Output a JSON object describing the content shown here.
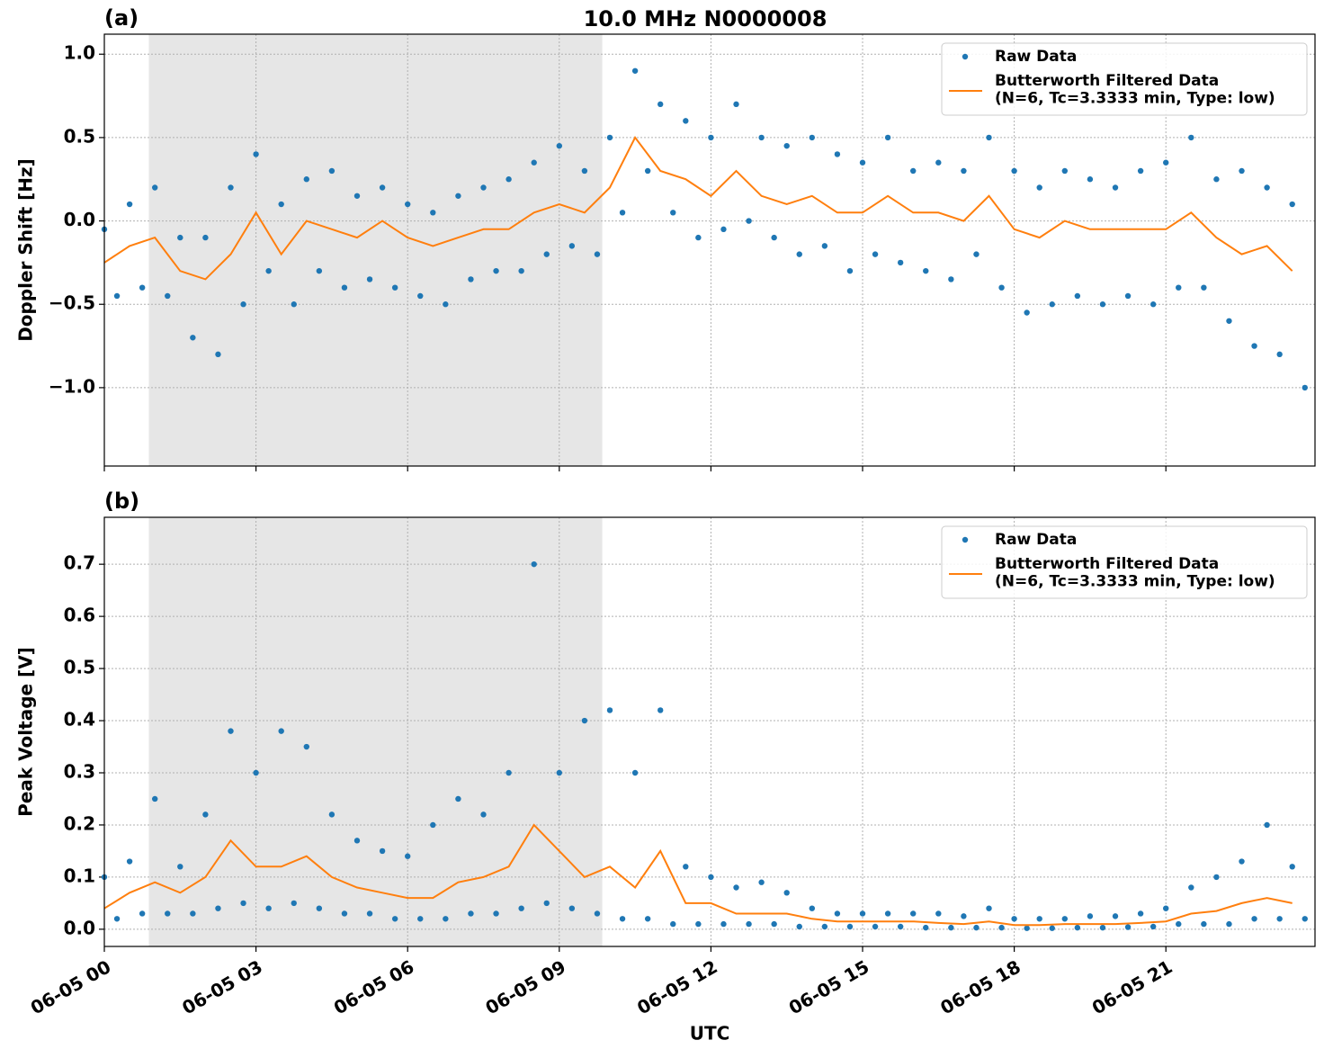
{
  "chart_data": [
    {
      "type": "scatter-line",
      "panel_label": "(a)",
      "title": "10.0 MHz N0000008",
      "ylabel": "Doppler Shift [Hz]",
      "xlim": [
        0,
        23.95
      ],
      "xticks": [
        0,
        3,
        6,
        9,
        12,
        15,
        18,
        21
      ],
      "show_xtick_labels": false,
      "ylim": [
        -1.47,
        1.12
      ],
      "yticks": [
        {
          "value": -1,
          "label": "−1.0"
        },
        {
          "value": -0.5,
          "label": "−0.5"
        },
        {
          "value": 0,
          "label": "0.0"
        },
        0.5,
        {
          "value": 1,
          "label": "1.0"
        }
      ],
      "grid": true,
      "legend": "upper right",
      "shade": {
        "x": [
          0.88,
          9.85
        ],
        "color": "#e6e6e6"
      },
      "series": [
        {
          "name": "Raw Data",
          "kind": "points",
          "color": "#1f77b4",
          "x": [
            0,
            0.25,
            0.5,
            0.75,
            1,
            1.25,
            1.5,
            1.75,
            2,
            2.25,
            2.5,
            2.75,
            3,
            3.25,
            3.5,
            3.75,
            4,
            4.25,
            4.5,
            4.75,
            5,
            5.25,
            5.5,
            5.75,
            6,
            6.25,
            6.5,
            6.75,
            7,
            7.25,
            7.5,
            7.75,
            8,
            8.25,
            8.5,
            8.75,
            9,
            9.25,
            9.5,
            9.75,
            10,
            10.25,
            10.5,
            10.75,
            11,
            11.25,
            11.5,
            11.75,
            12,
            12.25,
            12.5,
            12.75,
            13,
            13.25,
            13.5,
            13.75,
            14,
            14.25,
            14.5,
            14.75,
            15,
            15.25,
            15.5,
            15.75,
            16,
            16.25,
            16.5,
            16.75,
            17,
            17.25,
            17.5,
            17.75,
            18,
            18.25,
            18.5,
            18.75,
            19,
            19.25,
            19.5,
            19.75,
            20,
            20.25,
            20.5,
            20.75,
            21,
            21.25,
            21.5,
            21.75,
            22,
            22.25,
            22.5,
            22.75,
            23,
            23.25,
            23.5,
            23.75
          ],
          "values": [
            -0.05,
            -0.45,
            0.1,
            -0.4,
            0.2,
            -0.45,
            -0.1,
            -0.7,
            -0.1,
            -0.8,
            0.2,
            -0.5,
            0.4,
            -0.3,
            0.1,
            -0.5,
            0.25,
            -0.3,
            0.3,
            -0.4,
            0.15,
            -0.35,
            0.2,
            -0.4,
            0.1,
            -0.45,
            0.05,
            -0.5,
            0.15,
            -0.35,
            0.2,
            -0.3,
            0.25,
            -0.3,
            0.35,
            -0.2,
            0.45,
            -0.15,
            0.3,
            -0.2,
            0.5,
            0.05,
            0.9,
            0.3,
            0.7,
            0.05,
            0.6,
            -0.1,
            0.5,
            -0.05,
            0.7,
            0.0,
            0.5,
            -0.1,
            0.45,
            -0.2,
            0.5,
            -0.15,
            0.4,
            -0.3,
            0.35,
            -0.2,
            0.5,
            -0.25,
            0.3,
            -0.3,
            0.35,
            -0.35,
            0.3,
            -0.2,
            0.5,
            -0.4,
            0.3,
            -0.55,
            0.2,
            -0.5,
            0.3,
            -0.45,
            0.25,
            -0.5,
            0.2,
            -0.45,
            0.3,
            -0.5,
            0.35,
            -0.4,
            0.5,
            -0.4,
            0.25,
            -0.6,
            0.3,
            -0.75,
            0.2,
            -0.8,
            0.1,
            -1.0
          ]
        },
        {
          "name": "Butterworth Filtered Data\n(N=6, Tc=3.3333 min, Type: low)",
          "kind": "line",
          "color": "#ff7f0e",
          "x": [
            0,
            0.5,
            1,
            1.5,
            2,
            2.5,
            3,
            3.5,
            4,
            4.5,
            5,
            5.5,
            6,
            6.5,
            7,
            7.5,
            8,
            8.5,
            9,
            9.5,
            10,
            10.5,
            11,
            11.5,
            12,
            12.5,
            13,
            13.5,
            14,
            14.5,
            15,
            15.5,
            16,
            16.5,
            17,
            17.5,
            18,
            18.5,
            19,
            19.5,
            20,
            20.5,
            21,
            21.5,
            22,
            22.5,
            23,
            23.5
          ],
          "values": [
            -0.25,
            -0.15,
            -0.1,
            -0.3,
            -0.35,
            -0.2,
            0.05,
            -0.2,
            0.0,
            -0.05,
            -0.1,
            0.0,
            -0.1,
            -0.15,
            -0.1,
            -0.05,
            -0.05,
            0.05,
            0.1,
            0.05,
            0.2,
            0.5,
            0.3,
            0.25,
            0.15,
            0.3,
            0.15,
            0.1,
            0.15,
            0.05,
            0.05,
            0.15,
            0.05,
            0.05,
            0.0,
            0.15,
            -0.05,
            -0.1,
            0.0,
            -0.05,
            -0.05,
            -0.05,
            -0.05,
            0.05,
            -0.1,
            -0.2,
            -0.15,
            -0.3
          ]
        }
      ]
    },
    {
      "type": "scatter-line",
      "panel_label": "(b)",
      "xlabel": "UTC",
      "ylabel": "Peak Voltage [V]",
      "xlim": [
        0,
        23.95
      ],
      "xticks": [
        {
          "value": 0,
          "label": "06-05 00"
        },
        {
          "value": 3,
          "label": "06-05 03"
        },
        {
          "value": 6,
          "label": "06-05 06"
        },
        {
          "value": 9,
          "label": "06-05 09"
        },
        {
          "value": 12,
          "label": "06-05 12"
        },
        {
          "value": 15,
          "label": "06-05 15"
        },
        {
          "value": 18,
          "label": "06-05 18"
        },
        {
          "value": 21,
          "label": "06-05 21"
        }
      ],
      "show_xtick_labels": true,
      "ylim": [
        -0.033,
        0.79
      ],
      "yticks": [
        {
          "value": 0,
          "label": "0.0"
        },
        0.1,
        0.2,
        0.3,
        0.4,
        0.5,
        0.6,
        0.7
      ],
      "grid": true,
      "legend": "upper right",
      "shade": {
        "x": [
          0.88,
          9.85
        ],
        "color": "#e6e6e6"
      },
      "series": [
        {
          "name": "Raw Data",
          "kind": "points",
          "color": "#1f77b4",
          "x": [
            0,
            0.25,
            0.5,
            0.75,
            1,
            1.25,
            1.5,
            1.75,
            2,
            2.25,
            2.5,
            2.75,
            3,
            3.25,
            3.5,
            3.75,
            4,
            4.25,
            4.5,
            4.75,
            5,
            5.25,
            5.5,
            5.75,
            6,
            6.25,
            6.5,
            6.75,
            7,
            7.25,
            7.5,
            7.75,
            8,
            8.25,
            8.5,
            8.75,
            9,
            9.25,
            9.5,
            9.75,
            10,
            10.25,
            10.5,
            10.75,
            11,
            11.25,
            11.5,
            11.75,
            12,
            12.25,
            12.5,
            12.75,
            13,
            13.25,
            13.5,
            13.75,
            14,
            14.25,
            14.5,
            14.75,
            15,
            15.25,
            15.5,
            15.75,
            16,
            16.25,
            16.5,
            16.75,
            17,
            17.25,
            17.5,
            17.75,
            18,
            18.25,
            18.5,
            18.75,
            19,
            19.25,
            19.5,
            19.75,
            20,
            20.25,
            20.5,
            20.75,
            21,
            21.25,
            21.5,
            21.75,
            22,
            22.25,
            22.5,
            22.75,
            23,
            23.25,
            23.5,
            23.75
          ],
          "values": [
            0.1,
            0.02,
            0.13,
            0.03,
            0.25,
            0.03,
            0.12,
            0.03,
            0.22,
            0.04,
            0.38,
            0.05,
            0.3,
            0.04,
            0.38,
            0.05,
            0.35,
            0.04,
            0.22,
            0.03,
            0.17,
            0.03,
            0.15,
            0.02,
            0.14,
            0.02,
            0.2,
            0.02,
            0.25,
            0.03,
            0.22,
            0.03,
            0.3,
            0.04,
            0.7,
            0.05,
            0.3,
            0.04,
            0.4,
            0.03,
            0.42,
            0.02,
            0.3,
            0.02,
            0.42,
            0.01,
            0.12,
            0.01,
            0.1,
            0.01,
            0.08,
            0.01,
            0.09,
            0.01,
            0.07,
            0.005,
            0.04,
            0.005,
            0.03,
            0.005,
            0.03,
            0.005,
            0.03,
            0.005,
            0.03,
            0.003,
            0.03,
            0.003,
            0.025,
            0.003,
            0.04,
            0.003,
            0.02,
            0.002,
            0.02,
            0.002,
            0.02,
            0.003,
            0.025,
            0.003,
            0.025,
            0.004,
            0.03,
            0.005,
            0.04,
            0.01,
            0.08,
            0.01,
            0.1,
            0.01,
            0.13,
            0.02,
            0.2,
            0.02,
            0.12,
            0.02
          ]
        },
        {
          "name": "Butterworth Filtered Data\n(N=6, Tc=3.3333 min, Type: low)",
          "kind": "line",
          "color": "#ff7f0e",
          "x": [
            0,
            0.5,
            1,
            1.5,
            2,
            2.5,
            3,
            3.5,
            4,
            4.5,
            5,
            5.5,
            6,
            6.5,
            7,
            7.5,
            8,
            8.5,
            9,
            9.5,
            10,
            10.5,
            11,
            11.5,
            12,
            12.5,
            13,
            13.5,
            14,
            14.5,
            15,
            15.5,
            16,
            16.5,
            17,
            17.5,
            18,
            18.5,
            19,
            19.5,
            20,
            20.5,
            21,
            21.5,
            22,
            22.5,
            23,
            23.5
          ],
          "values": [
            0.04,
            0.07,
            0.09,
            0.07,
            0.1,
            0.17,
            0.12,
            0.12,
            0.14,
            0.1,
            0.08,
            0.07,
            0.06,
            0.06,
            0.09,
            0.1,
            0.12,
            0.2,
            0.15,
            0.1,
            0.12,
            0.08,
            0.15,
            0.05,
            0.05,
            0.03,
            0.03,
            0.03,
            0.02,
            0.015,
            0.015,
            0.015,
            0.015,
            0.012,
            0.01,
            0.015,
            0.008,
            0.008,
            0.01,
            0.01,
            0.01,
            0.012,
            0.015,
            0.03,
            0.035,
            0.05,
            0.06,
            0.05
          ]
        }
      ]
    }
  ]
}
